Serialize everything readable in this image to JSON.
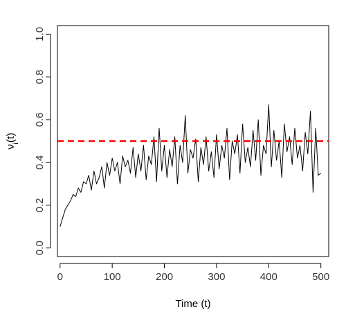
{
  "chart_data": {
    "type": "line",
    "xlabel": "Time (t)",
    "ylabel": "ν_i(t)",
    "xlim": [
      -5,
      515
    ],
    "ylim": [
      -0.04,
      1.04
    ],
    "x_ticks": [
      0,
      100,
      200,
      300,
      400,
      500
    ],
    "x_tick_labels": [
      "0",
      "100",
      "200",
      "300",
      "400",
      "500"
    ],
    "y_ticks": [
      0.0,
      0.2,
      0.4,
      0.6,
      0.8,
      1.0
    ],
    "y_tick_labels": [
      "0.0",
      "0.2",
      "0.4",
      "0.6",
      "0.8",
      "1.0"
    ],
    "grid": false,
    "series": [
      {
        "style": "solid",
        "color": "#000000",
        "x": [
          0,
          5,
          10,
          15,
          20,
          25,
          30,
          35,
          40,
          45,
          50,
          55,
          60,
          65,
          70,
          75,
          80,
          85,
          90,
          95,
          100,
          105,
          110,
          115,
          120,
          125,
          130,
          135,
          140,
          145,
          150,
          155,
          160,
          165,
          170,
          175,
          180,
          185,
          190,
          195,
          200,
          205,
          210,
          215,
          220,
          225,
          230,
          235,
          240,
          245,
          250,
          255,
          260,
          265,
          270,
          275,
          280,
          285,
          290,
          295,
          300,
          305,
          310,
          315,
          320,
          325,
          330,
          335,
          340,
          345,
          350,
          355,
          360,
          365,
          370,
          375,
          380,
          385,
          390,
          395,
          400,
          405,
          410,
          415,
          420,
          425,
          430,
          435,
          440,
          445,
          450,
          455,
          460,
          465,
          470,
          475,
          480,
          485,
          490,
          495,
          500
        ],
        "y": [
          0.1,
          0.14,
          0.18,
          0.2,
          0.22,
          0.25,
          0.24,
          0.28,
          0.26,
          0.31,
          0.3,
          0.34,
          0.27,
          0.36,
          0.3,
          0.33,
          0.38,
          0.28,
          0.4,
          0.34,
          0.42,
          0.36,
          0.4,
          0.3,
          0.43,
          0.38,
          0.41,
          0.35,
          0.47,
          0.33,
          0.44,
          0.36,
          0.48,
          0.32,
          0.43,
          0.39,
          0.52,
          0.31,
          0.56,
          0.36,
          0.48,
          0.33,
          0.46,
          0.38,
          0.52,
          0.3,
          0.48,
          0.4,
          0.62,
          0.35,
          0.46,
          0.42,
          0.51,
          0.31,
          0.47,
          0.39,
          0.52,
          0.36,
          0.45,
          0.33,
          0.53,
          0.37,
          0.48,
          0.42,
          0.56,
          0.32,
          0.5,
          0.44,
          0.53,
          0.35,
          0.58,
          0.4,
          0.47,
          0.38,
          0.55,
          0.41,
          0.6,
          0.34,
          0.48,
          0.44,
          0.67,
          0.38,
          0.55,
          0.41,
          0.5,
          0.33,
          0.58,
          0.45,
          0.52,
          0.39,
          0.56,
          0.42,
          0.48,
          0.36,
          0.54,
          0.44,
          0.64,
          0.26,
          0.56,
          0.34,
          0.35
        ]
      },
      {
        "style": "dashed",
        "color": "#ff0000",
        "x": [
          -5,
          515
        ],
        "y": [
          0.5,
          0.5
        ]
      }
    ]
  }
}
